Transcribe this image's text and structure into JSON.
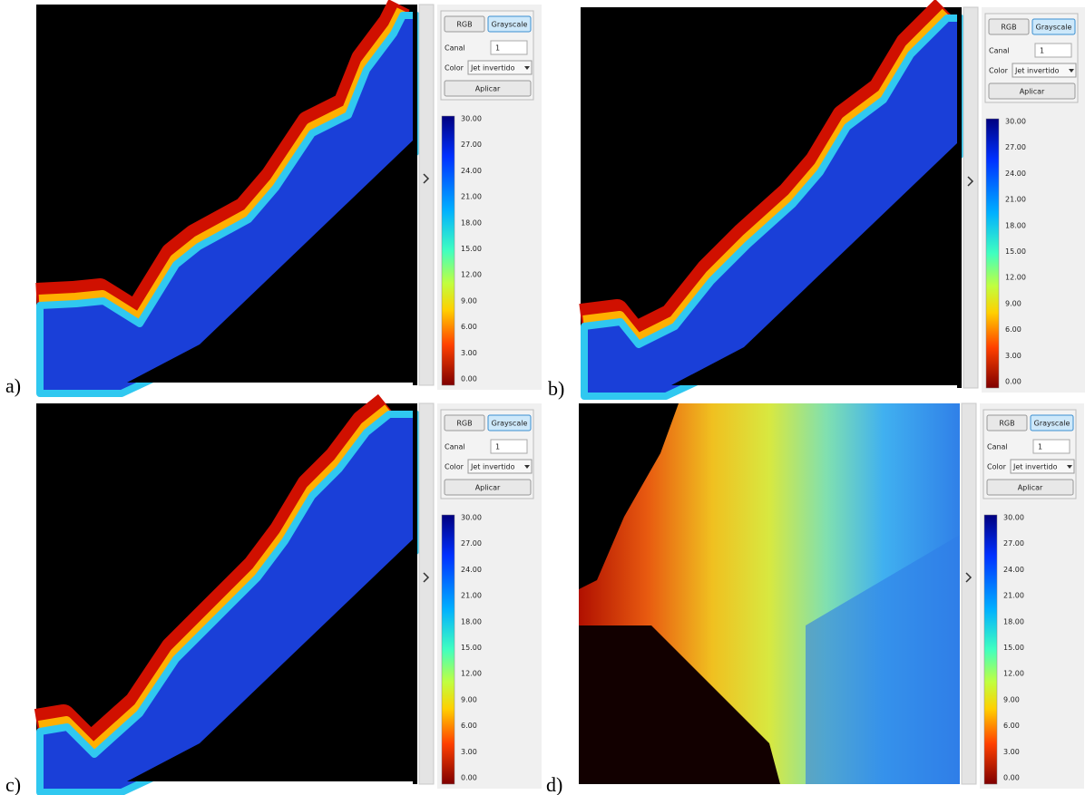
{
  "panels": [
    {
      "label": "a)",
      "buttons": [
        "RGB",
        "Grayscale"
      ],
      "channel_label": "Canal",
      "channel_value": "1",
      "color_label": "Color",
      "color_value": "Jet invertido",
      "apply": "Aplicar",
      "colorbar_ticks": [
        "30.00",
        "27.00",
        "24.00",
        "21.00",
        "18.00",
        "15.00",
        "12.00",
        "9.00",
        "6.00",
        "3.00",
        "0.00"
      ]
    },
    {
      "label": "b)",
      "buttons": [
        "RGB",
        "Grayscale"
      ],
      "channel_label": "Canal",
      "channel_value": "1",
      "color_label": "Color",
      "color_value": "Jet invertido",
      "apply": "Aplicar",
      "colorbar_ticks": [
        "30.00",
        "27.00",
        "24.00",
        "21.00",
        "18.00",
        "15.00",
        "12.00",
        "9.00",
        "6.00",
        "3.00",
        "0.00"
      ]
    },
    {
      "label": "c)",
      "buttons": [
        "RGB",
        "Grayscale"
      ],
      "channel_label": "Canal",
      "channel_value": "1",
      "color_label": "Color",
      "color_value": "Jet invertido",
      "apply": "Aplicar",
      "colorbar_ticks": [
        "30.00",
        "27.00",
        "24.00",
        "21.00",
        "18.00",
        "15.00",
        "12.00",
        "9.00",
        "6.00",
        "3.00",
        "0.00"
      ]
    },
    {
      "label": "d)",
      "buttons": [
        "RGB",
        "Grayscale"
      ],
      "channel_label": "Canal",
      "channel_value": "1",
      "color_label": "Color",
      "color_value": "Jet invertido",
      "apply": "Aplicar",
      "colorbar_ticks": [
        "30.00",
        "27.00",
        "24.00",
        "21.00",
        "18.00",
        "15.00",
        "12.00",
        "9.00",
        "6.00",
        "3.00",
        "0.00"
      ]
    }
  ]
}
